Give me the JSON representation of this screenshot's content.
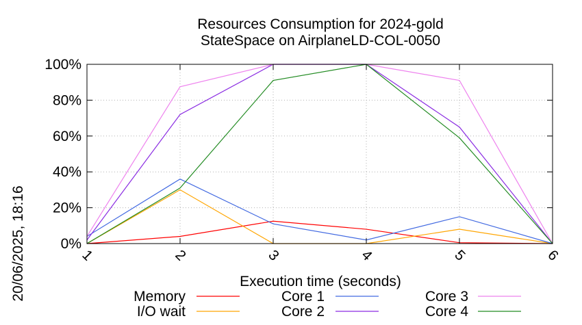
{
  "chart_data": {
    "type": "line",
    "title": "Resources Consumption for 2024-gold",
    "subtitle": "StateSpace on AirplaneLD-COL-0050",
    "xlabel": "Execution time (seconds)",
    "ylabel": "",
    "side_label": "20/06/2025, 18:16",
    "x": [
      1,
      2,
      3,
      4,
      5,
      6
    ],
    "x_tick_labels": [
      "1",
      "2",
      "3",
      "4",
      "5",
      "6"
    ],
    "xlim": [
      1,
      6
    ],
    "ylim": [
      0,
      100
    ],
    "y_tick_labels": [
      "0%",
      "20%",
      "40%",
      "60%",
      "80%",
      "100%"
    ],
    "y_ticks": [
      0,
      20,
      40,
      60,
      80,
      100
    ],
    "grid": true,
    "legend_position": "bottom",
    "series": [
      {
        "name": "Memory",
        "color": "#ff0000",
        "values": [
          0,
          4,
          12.5,
          8,
          0.5,
          0
        ]
      },
      {
        "name": "I/O wait",
        "color": "#ffa500",
        "values": [
          0,
          30,
          0,
          0,
          8,
          0
        ]
      },
      {
        "name": "Core 1",
        "color": "#4169e1",
        "values": [
          4,
          36,
          11,
          2,
          15,
          0
        ]
      },
      {
        "name": "Core 2",
        "color": "#8a2be2",
        "values": [
          2,
          72,
          100,
          100,
          65,
          0
        ]
      },
      {
        "name": "Core 3",
        "color": "#ee82ee",
        "values": [
          4,
          87.5,
          100,
          100,
          91,
          0
        ]
      },
      {
        "name": "Core 4",
        "color": "#228b22",
        "values": [
          0,
          31,
          91,
          100,
          59,
          0
        ]
      }
    ]
  }
}
